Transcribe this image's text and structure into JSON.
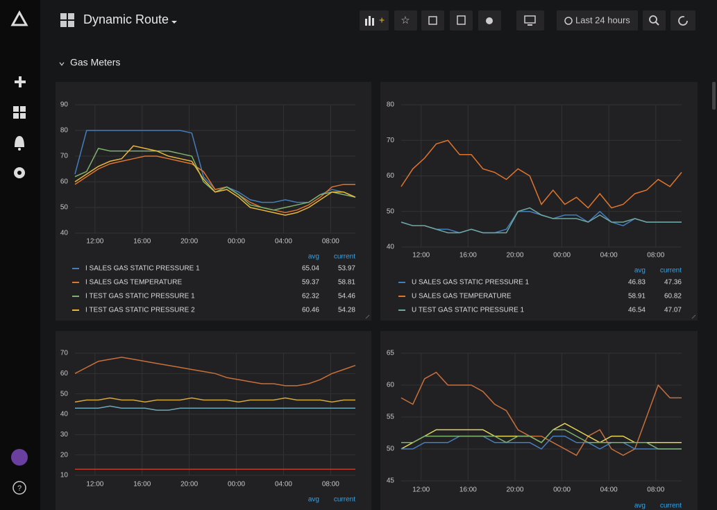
{
  "header": {
    "title": "Dynamic Route",
    "time_range": "Last 24 hours"
  },
  "row": {
    "title": "Gas Meters"
  },
  "panels": [
    {
      "type": "line",
      "xlim": [
        10.3,
        34.1
      ],
      "ylim": [
        40,
        90
      ],
      "yticks": [
        40,
        50,
        60,
        70,
        80,
        90
      ],
      "xticks": [
        {
          "value": 12,
          "label": "12:00"
        },
        {
          "value": 16,
          "label": "16:00"
        },
        {
          "value": 20,
          "label": "20:00"
        },
        {
          "value": 24,
          "label": "00:00"
        },
        {
          "value": 28,
          "label": "04:00"
        },
        {
          "value": 32,
          "label": "08:00"
        }
      ],
      "legend_columns": [
        "avg",
        "current"
      ],
      "series": [
        {
          "name": "I SALES GAS STATIC PRESSURE 1",
          "color": "#447ebc",
          "avg": 65.04,
          "current": 53.97,
          "values": [
            63,
            80,
            80,
            80,
            80,
            80,
            80,
            80,
            80,
            80,
            79,
            62,
            57,
            58,
            56,
            53,
            52,
            52,
            53,
            52,
            52,
            55,
            57,
            56,
            54
          ]
        },
        {
          "name": "I SALES GAS TEMPERATURE",
          "color": "#e0752d",
          "avg": 59.37,
          "current": 58.81,
          "values": [
            59,
            62,
            65,
            67,
            68,
            69,
            70,
            70,
            69,
            68,
            67,
            64,
            57,
            58,
            55,
            52,
            50,
            49,
            48,
            49,
            51,
            54,
            58,
            59,
            59
          ]
        },
        {
          "name": "I TEST GAS STATIC PRESSURE 1",
          "color": "#7eb26d",
          "avg": 62.32,
          "current": 54.46,
          "values": [
            62,
            64,
            73,
            72,
            72,
            72,
            72,
            72,
            72,
            71,
            70,
            60,
            56,
            58,
            55,
            51,
            50,
            49,
            50,
            51,
            52,
            55,
            56,
            55,
            54
          ]
        },
        {
          "name": "I TEST GAS STATIC PRESSURE 2",
          "color": "#eab839",
          "avg": 60.46,
          "current": 54.28,
          "values": [
            60,
            63,
            66,
            68,
            69,
            74,
            73,
            72,
            70,
            69,
            68,
            61,
            56,
            57,
            54,
            50,
            49,
            48,
            47,
            48,
            50,
            53,
            56,
            56,
            54
          ]
        }
      ]
    },
    {
      "type": "line",
      "xlim": [
        10.3,
        34.2
      ],
      "ylim": [
        40,
        80
      ],
      "yticks": [
        40,
        50,
        60,
        70,
        80
      ],
      "xticks": [
        {
          "value": 12,
          "label": "12:00"
        },
        {
          "value": 16,
          "label": "16:00"
        },
        {
          "value": 20,
          "label": "20:00"
        },
        {
          "value": 24,
          "label": "00:00"
        },
        {
          "value": 28,
          "label": "04:00"
        },
        {
          "value": 32,
          "label": "08:00"
        }
      ],
      "legend_columns": [
        "avg",
        "current"
      ],
      "series": [
        {
          "name": "U SALES GAS STATIC PRESSURE 1",
          "color": "#447ebc",
          "avg": 46.83,
          "current": 47.36,
          "values": [
            47,
            46,
            46,
            45,
            45,
            44,
            45,
            44,
            44,
            45,
            50,
            50,
            49,
            48,
            49,
            49,
            47,
            50,
            47,
            46,
            48,
            47,
            47,
            47,
            47
          ]
        },
        {
          "name": "U SALES GAS TEMPERATURE",
          "color": "#e0752d",
          "avg": 58.91,
          "current": 60.82,
          "values": [
            57,
            62,
            65,
            69,
            70,
            66,
            66,
            62,
            61,
            59,
            62,
            60,
            52,
            56,
            52,
            54,
            51,
            55,
            51,
            52,
            55,
            56,
            59,
            57,
            61
          ]
        },
        {
          "name": "U TEST GAS STATIC PRESSURE 1",
          "color": "#6fa8a0",
          "avg": 46.54,
          "current": 47.07,
          "values": [
            47,
            46,
            46,
            45,
            44,
            44,
            45,
            44,
            44,
            44,
            50,
            51,
            49,
            48,
            48,
            48,
            47,
            49,
            47,
            47,
            48,
            47,
            47,
            47,
            47
          ]
        }
      ]
    },
    {
      "type": "line",
      "xlim": [
        10.3,
        34.1
      ],
      "ylim": [
        10,
        70
      ],
      "yticks": [
        10,
        20,
        30,
        40,
        50,
        60,
        70
      ],
      "xticks": [
        {
          "value": 12,
          "label": "12:00"
        },
        {
          "value": 16,
          "label": "16:00"
        },
        {
          "value": 20,
          "label": "20:00"
        },
        {
          "value": 24,
          "label": "00:00"
        },
        {
          "value": 28,
          "label": "04:00"
        },
        {
          "value": 32,
          "label": "08:00"
        }
      ],
      "legend_columns": [
        "avg",
        "current"
      ],
      "series": [
        {
          "color": "#c9703a",
          "values": [
            60,
            63,
            66,
            67,
            68,
            67,
            66,
            65,
            64,
            63,
            62,
            61,
            60,
            58,
            57,
            56,
            55,
            55,
            54,
            54,
            55,
            57,
            60,
            62,
            64
          ]
        },
        {
          "color": "#d5a83a",
          "values": [
            46,
            47,
            47,
            48,
            47,
            47,
            46,
            47,
            47,
            47,
            48,
            47,
            47,
            47,
            46,
            47,
            47,
            47,
            48,
            47,
            47,
            47,
            46,
            47,
            47
          ]
        },
        {
          "color": "#6fa8b8",
          "values": [
            43,
            43,
            43,
            44,
            43,
            43,
            43,
            42,
            42,
            43,
            43,
            43,
            43,
            43,
            43,
            43,
            43,
            43,
            43,
            43,
            43,
            43,
            43,
            43,
            43
          ]
        },
        {
          "color": "#bf3a2b",
          "values": [
            13,
            13,
            13,
            13,
            13,
            13,
            13,
            13,
            13,
            13,
            13,
            13,
            13,
            13,
            13,
            13,
            13,
            13,
            13,
            13,
            13,
            13,
            13,
            13,
            13
          ]
        }
      ]
    },
    {
      "type": "line",
      "xlim": [
        10.3,
        34.2
      ],
      "ylim": [
        45,
        65
      ],
      "yticks": [
        45,
        50,
        55,
        60,
        65
      ],
      "xticks": [
        {
          "value": 12,
          "label": "12:00"
        },
        {
          "value": 16,
          "label": "16:00"
        },
        {
          "value": 20,
          "label": "20:00"
        },
        {
          "value": 24,
          "label": "00:00"
        },
        {
          "value": 28,
          "label": "04:00"
        },
        {
          "value": 32,
          "label": "08:00"
        }
      ],
      "legend_columns": [
        "avg",
        "current"
      ],
      "series": [
        {
          "color": "#c9703a",
          "values": [
            58,
            57,
            61,
            62,
            60,
            60,
            60,
            59,
            57,
            56,
            53,
            52,
            52,
            51,
            50,
            49,
            52,
            53,
            50,
            49,
            50,
            55,
            60,
            58,
            58
          ]
        },
        {
          "color": "#e5d55a",
          "values": [
            50,
            51,
            52,
            53,
            53,
            53,
            53,
            53,
            52,
            52,
            52,
            52,
            51,
            53,
            54,
            53,
            52,
            51,
            52,
            52,
            51,
            51,
            51,
            51,
            51
          ]
        },
        {
          "color": "#447ebc",
          "values": [
            50,
            50,
            51,
            51,
            51,
            52,
            52,
            52,
            51,
            51,
            51,
            51,
            50,
            52,
            52,
            51,
            51,
            50,
            51,
            51,
            50,
            50,
            50,
            50,
            50
          ]
        },
        {
          "color": "#7eb26d",
          "values": [
            51,
            51,
            52,
            52,
            52,
            52,
            52,
            52,
            52,
            51,
            52,
            52,
            51,
            53,
            53,
            52,
            51,
            51,
            51,
            51,
            51,
            51,
            50,
            50,
            50
          ]
        }
      ]
    }
  ]
}
